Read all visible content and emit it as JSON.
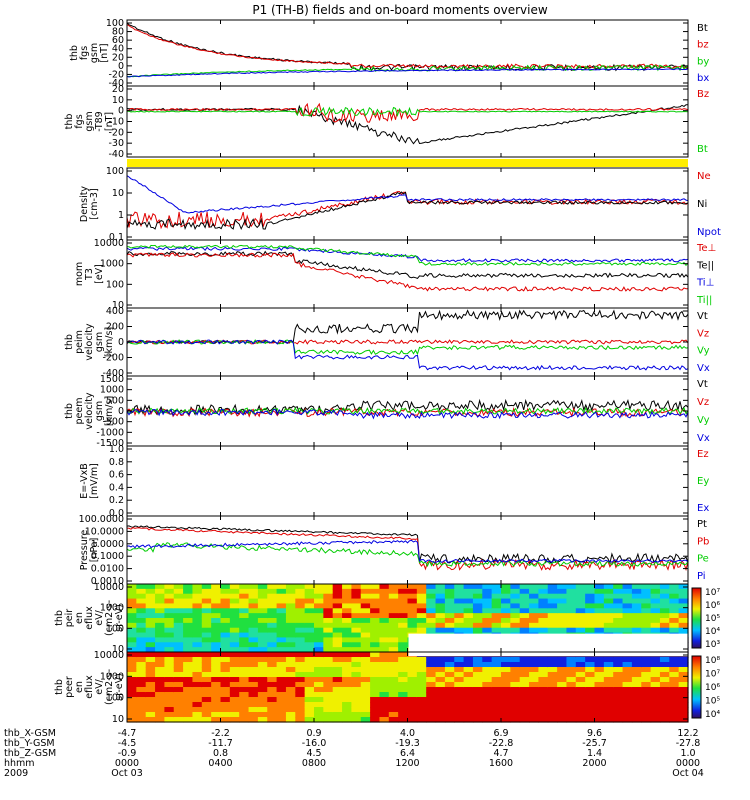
{
  "title": "P1 (TH-B) fields and on-board moments overview",
  "colors": {
    "black": "#000000",
    "red": "#e00000",
    "green": "#00cc00",
    "blue": "#0000e0",
    "yellow": "#ffee00"
  },
  "chart_data": [
    {
      "type": "line",
      "id": "fgs-gsm",
      "ylabel": [
        "thb",
        "fgs",
        "gsm",
        "[nT]"
      ],
      "ylim": [
        -40,
        100
      ],
      "yticks": [
        "100",
        "80",
        "60",
        "40",
        "20",
        "0",
        "-20",
        "-40"
      ],
      "legend": [
        {
          "label": "Bt",
          "color": "black"
        },
        {
          "label": "bz",
          "color": "red"
        },
        {
          "label": "by",
          "color": "green"
        },
        {
          "label": "bx",
          "color": "blue"
        }
      ]
    },
    {
      "type": "line",
      "id": "fgs-gsm-detrended",
      "ylabel": [
        "thb",
        "fgs",
        "gsm",
        "-T89",
        "[nT]"
      ],
      "ylim": [
        -45,
        25
      ],
      "yticks": [
        "20",
        "10",
        "0",
        "-10",
        "-20",
        "-30",
        "-40"
      ],
      "legend": [
        {
          "label": "Bz",
          "color": "red"
        },
        {
          "label": "Bt",
          "color": "green"
        }
      ]
    },
    {
      "type": "bar",
      "id": "mode-bar",
      "color": "yellow"
    },
    {
      "type": "line",
      "id": "density",
      "log": true,
      "ylabel": [
        "Density",
        "[cm-3]"
      ],
      "ylim": [
        0.05,
        200
      ],
      "yticks": [
        "100",
        "10",
        "1",
        "0.1"
      ],
      "legend": [
        {
          "label": "Ne",
          "color": "red"
        },
        {
          "label": "Ni",
          "color": "black"
        },
        {
          "label": "Npot",
          "color": "blue"
        }
      ]
    },
    {
      "type": "line",
      "id": "temperature",
      "log": true,
      "ylabel": [
        "mom",
        "T3",
        "[eV]"
      ],
      "ylim": [
        5,
        15000
      ],
      "yticks": [
        "10000",
        "1000",
        "100",
        "10"
      ],
      "legend": [
        {
          "label": "Te⊥",
          "color": "red"
        },
        {
          "label": "Te||",
          "color": "black"
        },
        {
          "label": "Ti⊥",
          "color": "blue"
        },
        {
          "label": "Ti||",
          "color": "green"
        }
      ]
    },
    {
      "type": "line",
      "id": "peim-velocity",
      "ylabel": [
        "thb",
        "peim",
        "velocity",
        "gsm",
        "[km/s]"
      ],
      "ylim": [
        -450,
        450
      ],
      "yticks": [
        "400",
        "200",
        "0",
        "-200",
        "-400"
      ],
      "legend": [
        {
          "label": "Vt",
          "color": "black"
        },
        {
          "label": "Vz",
          "color": "red"
        },
        {
          "label": "Vy",
          "color": "green"
        },
        {
          "label": "Vx",
          "color": "blue"
        }
      ]
    },
    {
      "type": "line",
      "id": "peem-velocity",
      "ylabel": [
        "thb",
        "peem",
        "velocity",
        "gsm",
        "[km/s]"
      ],
      "ylim": [
        -1600,
        1600
      ],
      "yticks": [
        "1500",
        "1000",
        "500",
        "0",
        "-500",
        "-1000",
        "-1500"
      ],
      "legend": [
        {
          "label": "Vt",
          "color": "black"
        },
        {
          "label": "Vz",
          "color": "red"
        },
        {
          "label": "Vy",
          "color": "green"
        },
        {
          "label": "Vx",
          "color": "blue"
        }
      ]
    },
    {
      "type": "line",
      "id": "efield",
      "ylabel": [
        "E=-VxB",
        "[mV/m]"
      ],
      "ylim": [
        0,
        1
      ],
      "yticks": [
        "1.0",
        "0.8",
        "0.6",
        "0.4",
        "0.2",
        "0.0"
      ],
      "legend": [
        {
          "label": "Ez",
          "color": "red"
        },
        {
          "label": "Ey",
          "color": "green"
        },
        {
          "label": "Ex",
          "color": "blue"
        }
      ]
    },
    {
      "type": "line",
      "id": "pressure",
      "log": true,
      "ylabel": [
        "Pressure",
        "[nPa]"
      ],
      "ylim": [
        0.001,
        100
      ],
      "yticks": [
        "100.0000",
        "10.0000",
        "1.0000",
        "0.1000",
        "0.0100",
        "0.0010"
      ],
      "legend": [
        {
          "label": "Pt",
          "color": "black"
        },
        {
          "label": "Pb",
          "color": "red"
        },
        {
          "label": "Pe",
          "color": "green"
        },
        {
          "label": "Pi",
          "color": "blue"
        }
      ]
    },
    {
      "type": "heatmap",
      "id": "peir-spectrogram",
      "ylabel": [
        "thb",
        "peir",
        "en",
        "eflux",
        "eV/",
        "(cm2-s-",
        "sr-eV)"
      ],
      "ylim": [
        8,
        20000
      ],
      "yticks": [
        "10000",
        "1000",
        "100",
        "10"
      ],
      "colorbar": {
        "ticks": [
          "10⁷",
          "10⁶",
          "10⁵",
          "10⁴",
          "10³"
        ]
      }
    },
    {
      "type": "heatmap",
      "id": "peer-spectrogram",
      "ylabel": [
        "thb",
        "peer",
        "en",
        "eflux",
        "eV/",
        "(cm2-s-",
        "sr-eV)"
      ],
      "ylim": [
        8,
        20000
      ],
      "yticks": [
        "10000",
        "1000",
        "100",
        "10"
      ],
      "colorbar": {
        "ticks": [
          "10⁸",
          "10⁷",
          "10⁶",
          "10⁵",
          "10⁴"
        ]
      }
    }
  ],
  "x_axis": {
    "rows": [
      {
        "label": "thb_X-GSM",
        "values": [
          "-4.7",
          "-2.2",
          "0.9",
          "4.0",
          "6.9",
          "9.6",
          "12.2"
        ]
      },
      {
        "label": "thb_Y-GSM",
        "values": [
          "-4.5",
          "-11.7",
          "-16.0",
          "-19.3",
          "-22.8",
          "-25.7",
          "-27.8"
        ]
      },
      {
        "label": "thb_Z-GSM",
        "values": [
          "-0.9",
          "0.8",
          "4.5",
          "6.4",
          "4.7",
          "1.4",
          "1.0"
        ]
      },
      {
        "label": "hhmm",
        "values": [
          "0000",
          "0400",
          "0800",
          "1200",
          "1600",
          "2000",
          "0000"
        ]
      },
      {
        "label": "2009",
        "values": [
          "Oct 03",
          "",
          "",
          "",
          "",
          "",
          "Oct 04"
        ]
      }
    ]
  }
}
